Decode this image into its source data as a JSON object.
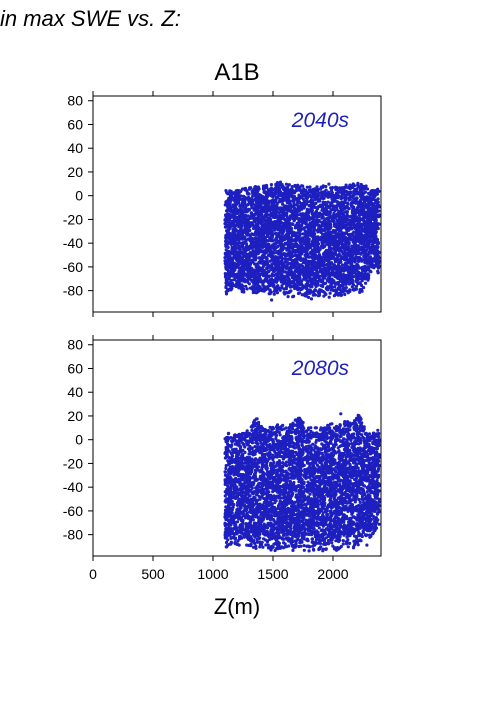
{
  "header_text": "in max SWE vs. Z:",
  "colors": {
    "points": "#1d1fbf",
    "axes": "#000000",
    "background": "#ffffff"
  },
  "chart_data": {
    "type": "scatter",
    "title": "A1B",
    "xlabel": "Z(m)",
    "ylabel": "",
    "xlim": [
      0,
      2400
    ],
    "ylim": [
      -98,
      84
    ],
    "x_ticks": [
      0,
      500,
      1000,
      1500,
      2000
    ],
    "x_tick_labels": [
      "0",
      "500",
      "1000",
      "1500",
      "2000"
    ],
    "y_ticks": [
      80,
      60,
      40,
      20,
      0,
      -20,
      -40,
      -60,
      -80
    ],
    "y_tick_labels": [
      "80",
      "60",
      "40",
      "20",
      "0",
      "-20",
      "-40",
      "-60",
      "-80"
    ],
    "grid": false,
    "panels": [
      {
        "label": "2040s",
        "z_range": [
          1090,
          2385
        ],
        "y_range": [
          -88,
          12
        ],
        "columns": [
          {
            "z": 1100,
            "ymin": -85,
            "ymax": 6
          },
          {
            "z": 1120,
            "ymin": -82,
            "ymax": 5
          },
          {
            "z": 1180,
            "ymin": -78,
            "ymax": 4
          },
          {
            "z": 1240,
            "ymin": -82,
            "ymax": 6
          },
          {
            "z": 1300,
            "ymin": -80,
            "ymax": 7
          },
          {
            "z": 1380,
            "ymin": -84,
            "ymax": 8
          },
          {
            "z": 1450,
            "ymin": -82,
            "ymax": 9
          },
          {
            "z": 1500,
            "ymin": -84,
            "ymax": 10
          },
          {
            "z": 1560,
            "ymin": -82,
            "ymax": 12
          },
          {
            "z": 1640,
            "ymin": -86,
            "ymax": 10
          },
          {
            "z": 1700,
            "ymin": -84,
            "ymax": 9
          },
          {
            "z": 1780,
            "ymin": -86,
            "ymax": 9
          },
          {
            "z": 1830,
            "ymin": -88,
            "ymax": 8
          },
          {
            "z": 1900,
            "ymin": -84,
            "ymax": 9
          },
          {
            "z": 1980,
            "ymin": -86,
            "ymax": 8
          },
          {
            "z": 2050,
            "ymin": -84,
            "ymax": 7
          },
          {
            "z": 2100,
            "ymin": -86,
            "ymax": 9
          },
          {
            "z": 2150,
            "ymin": -80,
            "ymax": 10
          },
          {
            "z": 2210,
            "ymin": -82,
            "ymax": 11
          },
          {
            "z": 2280,
            "ymin": -80,
            "ymax": 7
          },
          {
            "z": 2330,
            "ymin": -60,
            "ymax": 5
          },
          {
            "z": 2380,
            "ymin": -70,
            "ymax": 6
          }
        ]
      },
      {
        "label": "2080s",
        "z_range": [
          1090,
          2385
        ],
        "y_range": [
          -95,
          23
        ],
        "columns": [
          {
            "z": 1100,
            "ymin": -92,
            "ymax": 8
          },
          {
            "z": 1120,
            "ymin": -90,
            "ymax": 6
          },
          {
            "z": 1180,
            "ymin": -88,
            "ymax": 5
          },
          {
            "z": 1240,
            "ymin": -90,
            "ymax": 6
          },
          {
            "z": 1300,
            "ymin": -90,
            "ymax": 8
          },
          {
            "z": 1350,
            "ymin": -92,
            "ymax": 20
          },
          {
            "z": 1400,
            "ymin": -90,
            "ymax": 14
          },
          {
            "z": 1450,
            "ymin": -92,
            "ymax": 10
          },
          {
            "z": 1520,
            "ymin": -94,
            "ymax": 12
          },
          {
            "z": 1580,
            "ymin": -92,
            "ymax": 14
          },
          {
            "z": 1640,
            "ymin": -94,
            "ymax": 12
          },
          {
            "z": 1720,
            "ymin": -95,
            "ymax": 22
          },
          {
            "z": 1780,
            "ymin": -94,
            "ymax": 10
          },
          {
            "z": 1850,
            "ymin": -93,
            "ymax": 12
          },
          {
            "z": 1920,
            "ymin": -94,
            "ymax": 10
          },
          {
            "z": 1980,
            "ymin": -92,
            "ymax": 14
          },
          {
            "z": 2040,
            "ymin": -94,
            "ymax": 12
          },
          {
            "z": 2100,
            "ymin": -90,
            "ymax": 16
          },
          {
            "z": 2160,
            "ymin": -92,
            "ymax": 14
          },
          {
            "z": 2220,
            "ymin": -88,
            "ymax": 22
          },
          {
            "z": 2280,
            "ymin": -86,
            "ymax": 8
          },
          {
            "z": 2330,
            "ymin": -80,
            "ymax": 6
          },
          {
            "z": 2380,
            "ymin": -72,
            "ymax": 6
          }
        ]
      }
    ]
  }
}
